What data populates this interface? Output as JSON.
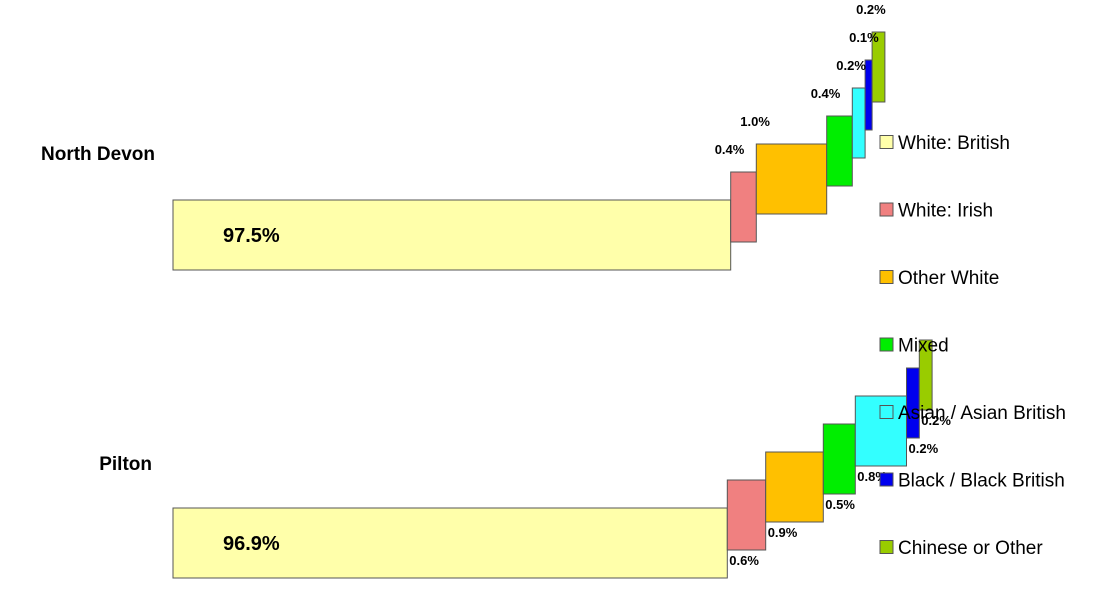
{
  "chart_data": {
    "type": "bar",
    "categories": [
      "North Devon",
      "Pilton"
    ],
    "series": [
      {
        "name": "White: British",
        "color": "#FFFFAA",
        "values": [
          97.5,
          96.9
        ],
        "labels": [
          "97.5%",
          "96.9%"
        ]
      },
      {
        "name": "White: Irish",
        "color": "#F08080",
        "values": [
          0.4,
          0.6
        ],
        "labels": [
          "0.4%",
          "0.6%"
        ]
      },
      {
        "name": "Other White",
        "color": "#FFC000",
        "values": [
          1.0,
          0.9
        ],
        "labels": [
          "1.0%",
          "0.9%"
        ]
      },
      {
        "name": "Mixed",
        "color": "#00EE00",
        "values": [
          0.4,
          0.5
        ],
        "labels": [
          "0.4%",
          "0.5%"
        ]
      },
      {
        "name": "Asian / Asian British",
        "color": "#33FFFF",
        "values": [
          0.2,
          0.8
        ],
        "labels": [
          "0.2%",
          "0.8%"
        ]
      },
      {
        "name": "Black / Black British",
        "color": "#0000EE",
        "values": [
          0.1,
          0.2
        ],
        "labels": [
          "0.1%",
          "0.2%"
        ]
      },
      {
        "name": "Chinese or Other",
        "color": "#99CC00",
        "values": [
          0.2,
          0.2
        ],
        "labels": [
          "0.2%",
          "0.2%"
        ]
      }
    ],
    "title": "",
    "xlabel": "",
    "ylabel": "",
    "stacked": true,
    "grid": false,
    "legend_position": "right"
  }
}
